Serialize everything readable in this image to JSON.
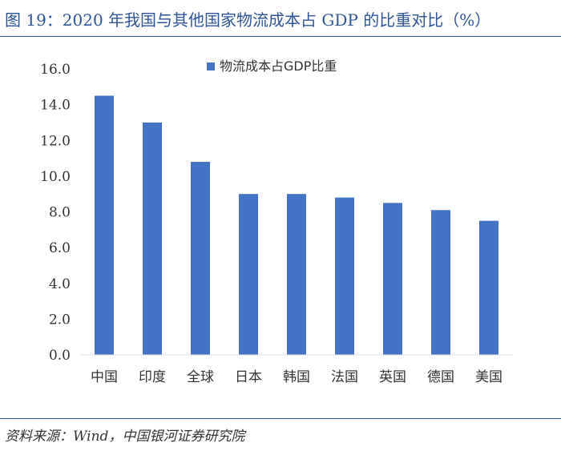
{
  "figure": {
    "title": "图 19：2020 年我国与其他国家物流成本占 GDP 的比重对比（%）",
    "source": "资料来源：Wind，中国银河证券研究院",
    "accent_color": "#2f5597"
  },
  "chart_data": {
    "type": "bar",
    "categories": [
      "中国",
      "印度",
      "全球",
      "日本",
      "韩国",
      "法国",
      "英国",
      "德国",
      "美国"
    ],
    "series": [
      {
        "name": "物流成本占GDP比重",
        "values": [
          14.5,
          13.0,
          10.8,
          9.0,
          9.0,
          8.8,
          8.5,
          8.1,
          7.5
        ],
        "color": "#4472c4"
      }
    ],
    "ylim": [
      0,
      16
    ],
    "yticks": [
      "0.0",
      "2.0",
      "4.0",
      "6.0",
      "8.0",
      "10.0",
      "12.0",
      "14.0",
      "16.0"
    ],
    "grid": false,
    "legend": "top-center",
    "xlabel": "",
    "ylabel": ""
  }
}
